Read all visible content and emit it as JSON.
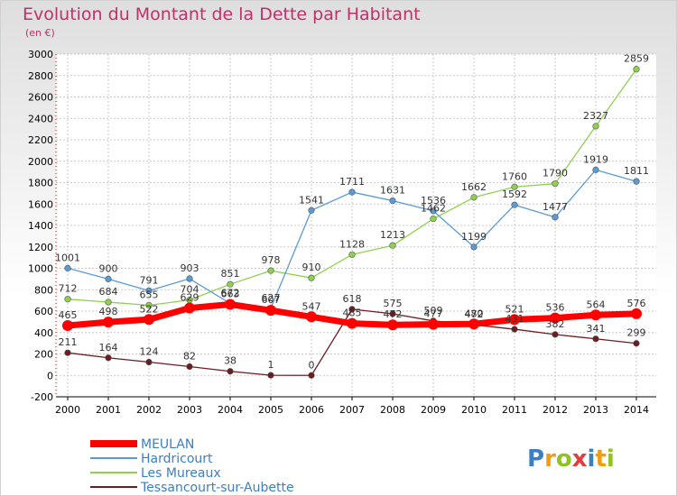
{
  "chart_data": {
    "type": "line",
    "title": "Evolution du Montant de la Dette par Habitant",
    "subtitle": "(en €)",
    "x": [
      "2000",
      "2001",
      "2002",
      "2003",
      "2004",
      "2005",
      "2006",
      "2007",
      "2008",
      "2009",
      "2010",
      "2011",
      "2012",
      "2013",
      "2014"
    ],
    "ylim": [
      -200,
      3000
    ],
    "yticks": [
      -200,
      0,
      200,
      400,
      600,
      800,
      1000,
      1200,
      1400,
      1600,
      1800,
      2000,
      2200,
      2400,
      2600,
      2800,
      3000
    ],
    "grid": true,
    "legend_position": "bottom-left",
    "series": [
      {
        "name": "MEULAN",
        "color": "#ff0000",
        "values": [
          465,
          498,
          522,
          629,
          663,
          607,
          547,
          485,
          472,
          477,
          480,
          521,
          536,
          564,
          576
        ]
      },
      {
        "name": "Hardricourt",
        "color": "#5b9bd5",
        "values": [
          1001,
          900,
          791,
          903,
          672,
          627,
          1541,
          1711,
          1631,
          1536,
          1199,
          1592,
          1477,
          1919,
          1811
        ]
      },
      {
        "name": "Les Mureaux",
        "color": "#8fd14f",
        "values": [
          712,
          684,
          655,
          704,
          851,
          978,
          910,
          1128,
          1213,
          1462,
          1662,
          1760,
          1790,
          2327,
          2859
        ]
      },
      {
        "name": "Tessancourt-sur-Aubette",
        "color": "#6b1c20",
        "values": [
          211,
          164,
          124,
          82,
          38,
          1,
          0,
          618,
          575,
          509,
          472,
          431,
          382,
          341,
          299
        ]
      }
    ]
  },
  "logo": {
    "p": "P",
    "r": "r",
    "o": "o",
    "x": "x",
    "i1": "i",
    "t": "t",
    "i2": "i"
  }
}
